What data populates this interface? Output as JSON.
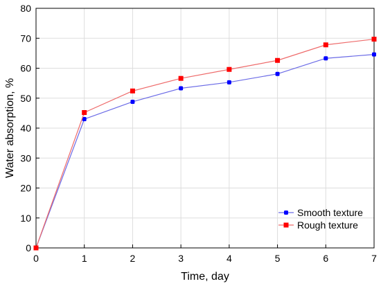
{
  "chart_data": {
    "type": "line",
    "title": "",
    "xlabel": "Time, day",
    "ylabel": "Water absorption, %",
    "xlim": [
      0,
      7
    ],
    "ylim": [
      0,
      80
    ],
    "xticks": [
      "0",
      "1",
      "2",
      "3",
      "4",
      "5",
      "6",
      "7"
    ],
    "yticks": [
      "0",
      "10",
      "20",
      "30",
      "40",
      "50",
      "60",
      "70",
      "80"
    ],
    "grid": true,
    "legend_position": "bottom-right",
    "x": [
      0,
      1,
      2,
      3,
      4,
      5,
      6,
      7
    ],
    "series": [
      {
        "name": "Smooth texture",
        "color": "#0000ff",
        "line_color": "#6a6ae6",
        "marker": "circle",
        "values": [
          0,
          43,
          48.8,
          53.3,
          55.3,
          58.1,
          63.3,
          64.6
        ]
      },
      {
        "name": "Rough texture",
        "color": "#ff0000",
        "line_color": "#ee6a6a",
        "marker": "square",
        "values": [
          0,
          45.2,
          52.4,
          56.6,
          59.6,
          62.6,
          67.8,
          69.7
        ]
      }
    ]
  }
}
